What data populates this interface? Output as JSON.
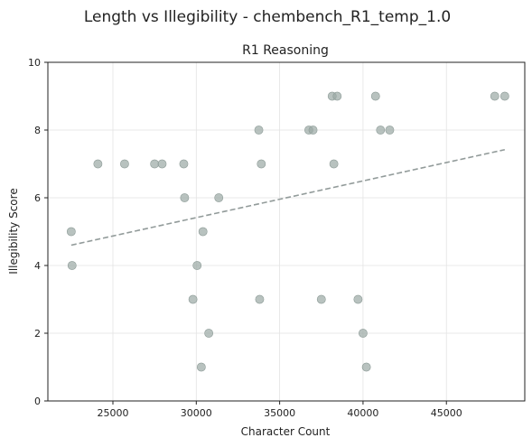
{
  "chart_data": {
    "type": "scatter",
    "suptitle": "Length vs Illegibility - chembench_R1_temp_1.0",
    "title": "R1 Reasoning",
    "xlabel": "Character Count",
    "ylabel": "Illegibility Score",
    "xlim": [
      21100,
      49700
    ],
    "ylim": [
      0,
      10
    ],
    "xticks": [
      25000,
      30000,
      35000,
      40000,
      45000
    ],
    "xtick_labels": [
      "25000",
      "30000",
      "35000",
      "40000",
      "45000"
    ],
    "yticks": [
      0,
      2,
      4,
      6,
      8,
      10
    ],
    "ytick_labels": [
      "0",
      "2",
      "4",
      "6",
      "8",
      "10"
    ],
    "grid": true,
    "point_color": "#9aa8a4",
    "trend_color": "#929b9a",
    "points": [
      {
        "x": 22500,
        "y": 5
      },
      {
        "x": 22550,
        "y": 4
      },
      {
        "x": 24100,
        "y": 7
      },
      {
        "x": 25700,
        "y": 7
      },
      {
        "x": 27500,
        "y": 7
      },
      {
        "x": 27950,
        "y": 7
      },
      {
        "x": 29250,
        "y": 7
      },
      {
        "x": 29300,
        "y": 6
      },
      {
        "x": 29800,
        "y": 3
      },
      {
        "x": 30050,
        "y": 4
      },
      {
        "x": 30300,
        "y": 1
      },
      {
        "x": 30400,
        "y": 5
      },
      {
        "x": 30750,
        "y": 2
      },
      {
        "x": 31350,
        "y": 6
      },
      {
        "x": 33800,
        "y": 3
      },
      {
        "x": 33750,
        "y": 8
      },
      {
        "x": 33900,
        "y": 7
      },
      {
        "x": 36750,
        "y": 8
      },
      {
        "x": 37000,
        "y": 8
      },
      {
        "x": 37500,
        "y": 3
      },
      {
        "x": 38150,
        "y": 9
      },
      {
        "x": 38250,
        "y": 7
      },
      {
        "x": 38450,
        "y": 9
      },
      {
        "x": 39700,
        "y": 3
      },
      {
        "x": 40000,
        "y": 2
      },
      {
        "x": 40200,
        "y": 1
      },
      {
        "x": 40750,
        "y": 9
      },
      {
        "x": 41050,
        "y": 8
      },
      {
        "x": 41600,
        "y": 8
      },
      {
        "x": 47900,
        "y": 9
      },
      {
        "x": 48500,
        "y": 9
      }
    ],
    "trendline": {
      "x": [
        22500,
        48500
      ],
      "y": [
        4.6,
        7.42
      ]
    }
  }
}
